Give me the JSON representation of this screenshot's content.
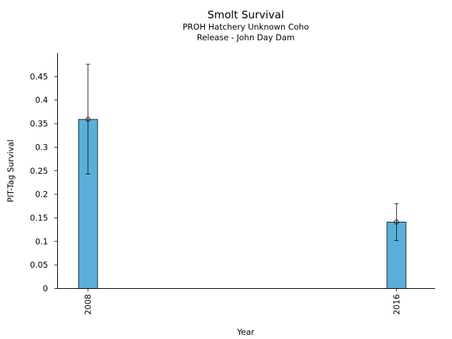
{
  "chart_data": {
    "type": "bar",
    "title": "Smolt Survival",
    "subtitle_lines": [
      "PROH Hatchery Unknown Coho",
      "Release - John Day Dam"
    ],
    "xlabel": "Year",
    "ylabel": "PIT-Tag Survival",
    "categories": [
      "2008",
      "2016"
    ],
    "x": [
      2008,
      2016
    ],
    "values": [
      0.359,
      0.141
    ],
    "error_low": [
      0.243,
      0.102
    ],
    "error_high": [
      0.476,
      0.18
    ],
    "ylim": [
      0,
      0.5
    ],
    "xlim": [
      2007.2,
      2017
    ],
    "yticks": [
      0,
      0.05,
      0.1,
      0.15,
      0.2,
      0.25,
      0.3,
      0.35,
      0.4,
      0.45
    ],
    "ytick_labels": [
      "0",
      "0.05",
      "0.1",
      "0.15",
      "0.2",
      "0.25",
      "0.3",
      "0.35",
      "0.4",
      "0.45"
    ],
    "bar_color": "#5aafd8",
    "edge_color": "#000000",
    "grid": false,
    "legend": "none"
  }
}
